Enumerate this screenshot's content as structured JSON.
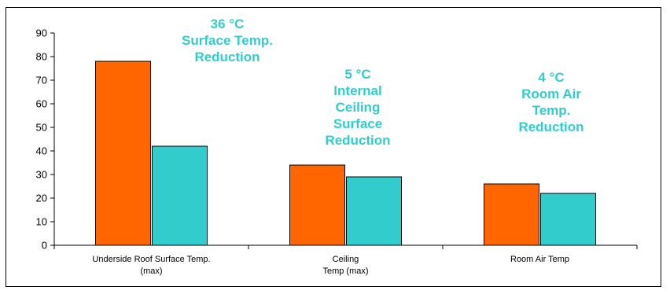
{
  "chart_data": {
    "type": "bar",
    "categories": [
      [
        "Underside Roof Surface Temp.",
        "(max)"
      ],
      [
        "Ceiling",
        "Temp (max)"
      ],
      [
        "Room Air Temp"
      ]
    ],
    "series": [
      {
        "color": "#ff6600",
        "values": [
          78,
          34,
          26
        ]
      },
      {
        "color": "#33cccc",
        "values": [
          42,
          29,
          22
        ]
      }
    ],
    "ylim": [
      0,
      90
    ],
    "yticks": [
      0,
      10,
      20,
      30,
      40,
      50,
      60,
      70,
      80,
      90
    ],
    "grid": false,
    "legend": "none",
    "annotation_color": "#33cccc",
    "annotations": [
      {
        "category": 0,
        "lines": [
          "36 °C",
          "Surface Temp.",
          "Reduction"
        ]
      },
      {
        "category": 1,
        "lines": [
          "5 °C",
          "Internal",
          "Ceiling",
          "Surface",
          "Reduction"
        ]
      },
      {
        "category": 2,
        "lines": [
          "4 °C",
          "Room Air",
          "Temp.",
          "Reduction"
        ]
      }
    ]
  }
}
